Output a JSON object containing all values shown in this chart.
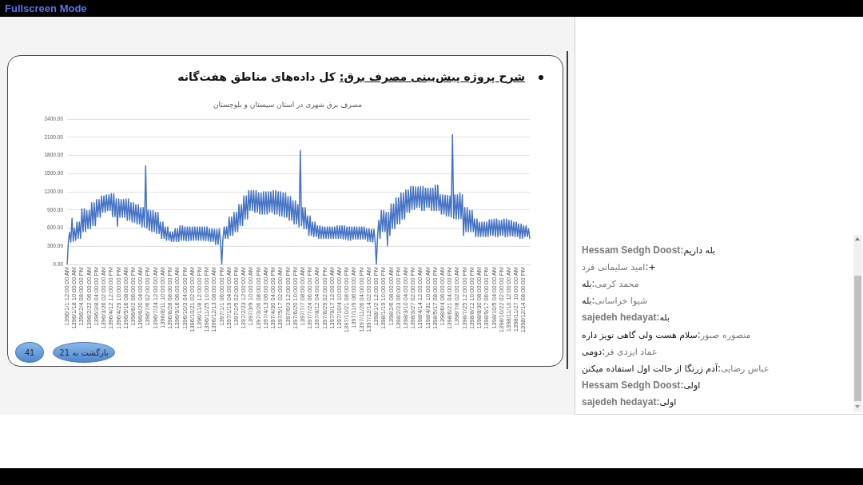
{
  "chart_data": {
    "type": "line",
    "title": "شرح پروژه پیش‌بینی مصرف برق: کل داده‌های مناطق هفت‌گانه",
    "subtitle": "مصرف برق شهری در استان سیستان و بلوچستان",
    "annotations": [
      "Fullscreen Mode",
      "41",
      "بازگشت به 21",
      "Hessam Sedgh Doost:بله داریم",
      "امید سلیمانی فرد:+",
      "محمد کرمی:بله",
      "شیوا خراسانی:بله",
      "sajedeh hedayat:بله",
      "منصوره صبور:سلام هست ولی گاهی نویز داره",
      "عماد ایزدی فر:دومی",
      "عباس رضایی:آدم زرنگا از حالت اول استفاده میکنن",
      "Hessam Sedgh Doost:اولی",
      "sajedeh hedayat:اولی"
    ],
    "color": "#4472c4",
    "categories": [
      "1396/1/1 12:00:00 AM",
      null,
      null,
      null,
      null,
      null,
      "1396/1/18 10:00:00 AM",
      null,
      null,
      null,
      null,
      null,
      "1396/2/4 08:00:00 PM",
      null,
      null,
      null,
      null,
      null,
      "1396/2/22 06:00:00 AM",
      null,
      null,
      null,
      null,
      null,
      "1396/3/8 04:00:00 PM",
      null,
      null,
      null,
      null,
      null,
      "1396/3/26 02:00:00 AM",
      null,
      null,
      null,
      null,
      null,
      "1396/4/12 12:00:00 PM",
      null,
      null,
      null,
      null,
      null,
      "1396/4/29 10:00:00 PM",
      null,
      null,
      null,
      null,
      null,
      "1396/5/16 08:00:00 AM",
      null,
      null,
      null,
      null,
      null,
      "1396/6/2 06:00:00 PM",
      null,
      null,
      null,
      null,
      null,
      "1396/6/20 04:00:00 AM",
      null,
      null,
      null,
      null,
      null,
      "1396/7/6 02:00:00 PM",
      null,
      null,
      null,
      null,
      null,
      "1396/7/24 12:00:00 AM",
      null,
      null,
      null,
      null,
      null,
      "1396/8/11 10:00:00 AM",
      null,
      null,
      null,
      null,
      null,
      "1396/8/28 08:00:00 PM",
      null,
      null,
      null,
      null,
      null,
      "1396/9/16 06:00:00 AM",
      null,
      null,
      null,
      null,
      null,
      "1396/10/3 04:00:00 PM",
      null,
      null,
      null,
      null,
      null,
      "1396/10/21 02:00:00 AM",
      null,
      null,
      null,
      null,
      null,
      "1396/11/8 12:00:00 PM",
      null,
      null,
      null,
      null,
      null,
      "1396/11/25 10:00:00 PM",
      null,
      null,
      null,
      null,
      null,
      "1396/12/13 08:00:00 AM",
      null,
      null,
      null,
      null,
      null,
      "1397/1/1 06:00:00 PM",
      null,
      null,
      null,
      null,
      null,
      "1397/1/19 04:00:00 AM",
      null,
      null,
      null,
      null,
      null,
      "1397/2/5 02:00:00 PM",
      null,
      null,
      null,
      null,
      null,
      "1397/2/23 12:00:00 AM",
      null,
      null,
      null,
      null,
      null,
      "1397/3/9 10:00:00 AM",
      null,
      null,
      null,
      null,
      null,
      "1397/3/26 08:00:00 PM",
      null,
      null,
      null,
      null,
      null,
      "1397/4/13 06:00:00 AM",
      null,
      null,
      null,
      null,
      null,
      "1397/4/30 04:00:00 PM",
      null,
      null,
      null,
      null,
      null,
      "1397/5/17 02:00:00 AM",
      null,
      null,
      null,
      null,
      null,
      "1397/6/3 12:00:00 PM",
      null,
      null,
      null,
      null,
      null,
      "1397/6/20 10:00:00 PM",
      null,
      null,
      null,
      null,
      null,
      "1397/7/7 08:00:00 AM",
      null,
      null,
      null,
      null,
      null,
      "1397/7/24 06:00:00 PM",
      null,
      null,
      null,
      null,
      null,
      "1397/8/12 04:00:00 AM",
      null,
      null,
      null,
      null,
      null,
      "1397/8/29 02:00:00 PM",
      null,
      null,
      null,
      null,
      null,
      "1397/9/17 12:00:00 AM",
      null,
      null,
      null,
      null,
      null,
      "1397/10/4 10:00:00 AM",
      null,
      null,
      null,
      null,
      null,
      "1397/10/21 08:00:00 PM",
      null,
      null,
      null,
      null,
      null,
      "1397/11/9 06:00:00 AM",
      null,
      null,
      null,
      null,
      null,
      "1397/11/26 04:00:00 PM",
      null,
      null,
      null,
      null,
      null,
      "1397/12/14 02:00:00 AM",
      null,
      null,
      null,
      null,
      null,
      "1398/1/2 12:00:00 PM",
      null,
      null,
      null,
      null,
      null,
      "1398/1/19 10:00:00 PM",
      null,
      null,
      null,
      null,
      null,
      "1398/2/6 08:00:00 AM",
      null,
      null,
      null,
      null,
      null,
      "1398/2/23 06:00:00 PM",
      null,
      null,
      null,
      null,
      null,
      "1398/3/10 04:00:00 AM",
      null,
      null,
      null,
      null,
      null,
      "1398/3/27 02:00:00 PM",
      null,
      null,
      null,
      null,
      null,
      "1398/4/14 12:00:00 AM",
      null,
      null,
      null,
      null,
      null,
      "1398/4/31 10:00:00 AM",
      null,
      null,
      null,
      null,
      null,
      "1398/5/17 08:00:00 PM",
      null,
      null,
      null,
      null,
      null,
      "1398/6/4 06:00:00 AM",
      null,
      null,
      null,
      null,
      null,
      "1398/6/21 04:00:00 PM",
      null,
      null,
      null,
      null,
      null,
      "1398/7/8 02:00:00 AM",
      null,
      null,
      null,
      null,
      null,
      "1398/7/25 12:00:00 PM",
      null,
      null,
      null,
      null,
      null,
      "1398/8/12 10:00:00 PM",
      null,
      null,
      null,
      null,
      null,
      "1398/8/30 08:00:00 AM",
      null,
      null,
      null,
      null,
      null,
      "1398/9/17 06:00:00 PM",
      null,
      null,
      null,
      null,
      null,
      "1398/10/5 04:00:00 AM",
      null,
      null,
      null,
      null,
      null,
      "1398/10/22 02:00:00 PM",
      null,
      null,
      null,
      null,
      null,
      "1398/11/10 12:00:00 AM",
      null,
      null,
      null,
      null,
      null,
      "1398/11/27 10:00:00 AM",
      null,
      null,
      null,
      null,
      null,
      "1398/12/14 08:00:00 PM",
      null,
      null,
      null,
      null,
      null
    ],
    "values": [
      0,
      360,
      530,
      370,
      760,
      380,
      600,
      400,
      700,
      430,
      700,
      430,
      920,
      540,
      920,
      540,
      890,
      590,
      890,
      590,
      1020,
      640,
      1020,
      640,
      1070,
      780,
      1070,
      780,
      1130,
      860,
      1130,
      860,
      1150,
      890,
      1150,
      890,
      1170,
      790,
      1170,
      790,
      1080,
      630,
      1080,
      780,
      1070,
      780,
      1070,
      780,
      1080,
      730,
      1080,
      730,
      1020,
      700,
      1020,
      700,
      990,
      670,
      990,
      670,
      940,
      620,
      940,
      620,
      1630,
      600,
      900,
      560,
      890,
      540,
      890,
      540,
      860,
      510,
      860,
      510,
      700,
      430,
      700,
      430,
      620,
      400,
      620,
      400,
      540,
      380,
      540,
      380,
      590,
      380,
      590,
      380,
      640,
      400,
      640,
      400,
      620,
      390,
      620,
      390,
      620,
      400,
      620,
      400,
      620,
      400,
      620,
      400,
      620,
      400,
      620,
      400,
      620,
      390,
      620,
      390,
      590,
      380,
      590,
      380,
      580,
      330,
      580,
      330,
      590,
      380,
      0,
      440,
      620,
      430,
      620,
      430,
      780,
      480,
      780,
      480,
      860,
      540,
      860,
      540,
      990,
      640,
      990,
      640,
      1130,
      750,
      1130,
      750,
      1220,
      890,
      1220,
      890,
      1220,
      860,
      1220,
      860,
      1180,
      830,
      1180,
      830,
      1200,
      830,
      1200,
      830,
      1200,
      860,
      1200,
      860,
      1220,
      830,
      1220,
      830,
      1200,
      800,
      1200,
      800,
      1180,
      780,
      1180,
      780,
      1120,
      730,
      1120,
      730,
      1050,
      670,
      1050,
      670,
      990,
      620,
      1880,
      640,
      940,
      590,
      940,
      590,
      800,
      480,
      800,
      480,
      700,
      460,
      700,
      460,
      640,
      430,
      640,
      430,
      620,
      430,
      620,
      430,
      620,
      430,
      620,
      430,
      620,
      430,
      620,
      430,
      640,
      430,
      640,
      430,
      640,
      420,
      640,
      420,
      620,
      400,
      620,
      400,
      620,
      420,
      620,
      420,
      620,
      420,
      620,
      420,
      620,
      420,
      620,
      420,
      590,
      380,
      590,
      380,
      580,
      370,
      580,
      370,
      0,
      480,
      730,
      430,
      890,
      540,
      890,
      540,
      860,
      310,
      860,
      480,
      1000,
      590,
      1000,
      590,
      1100,
      670,
      1100,
      670,
      1180,
      750,
      1180,
      750,
      1230,
      860,
      1230,
      860,
      1290,
      910,
      1290,
      910,
      1280,
      940,
      1280,
      940,
      1290,
      890,
      1290,
      890,
      1260,
      940,
      1260,
      940,
      1260,
      890,
      1260,
      890,
      1310,
      890,
      1310,
      890,
      1150,
      830,
      1150,
      830,
      1140,
      800,
      1140,
      800,
      1130,
      780,
      2140,
      760,
      1150,
      750,
      1150,
      750,
      1180,
      760,
      1150,
      480,
      940,
      540,
      940,
      540,
      890,
      540,
      890,
      540,
      750,
      460,
      750,
      460,
      700,
      460,
      700,
      460,
      700,
      460,
      700,
      460,
      740,
      480,
      740,
      480,
      750,
      460,
      750,
      460,
      730,
      480,
      730,
      480,
      750,
      460,
      750,
      460,
      730,
      470,
      730,
      470,
      700,
      460,
      700,
      460,
      670,
      430,
      670,
      430,
      640,
      460,
      640,
      460,
      590,
      430
    ],
    "ylim": [
      0,
      2400
    ],
    "yticks": [
      {
        "value": 0,
        "label": "0.00"
      },
      {
        "value": 300,
        "label": "300.00"
      },
      {
        "value": 600,
        "label": "600.00"
      },
      {
        "value": 900,
        "label": "900.00"
      },
      {
        "value": 1200,
        "label": "1200.00"
      },
      {
        "value": 1500,
        "label": "1500.00"
      },
      {
        "value": 1800,
        "label": "1800.00"
      },
      {
        "value": 2100,
        "label": "2100.00"
      },
      {
        "value": 2400,
        "label": "2400.00"
      }
    ],
    "grid": "y"
  }
}
